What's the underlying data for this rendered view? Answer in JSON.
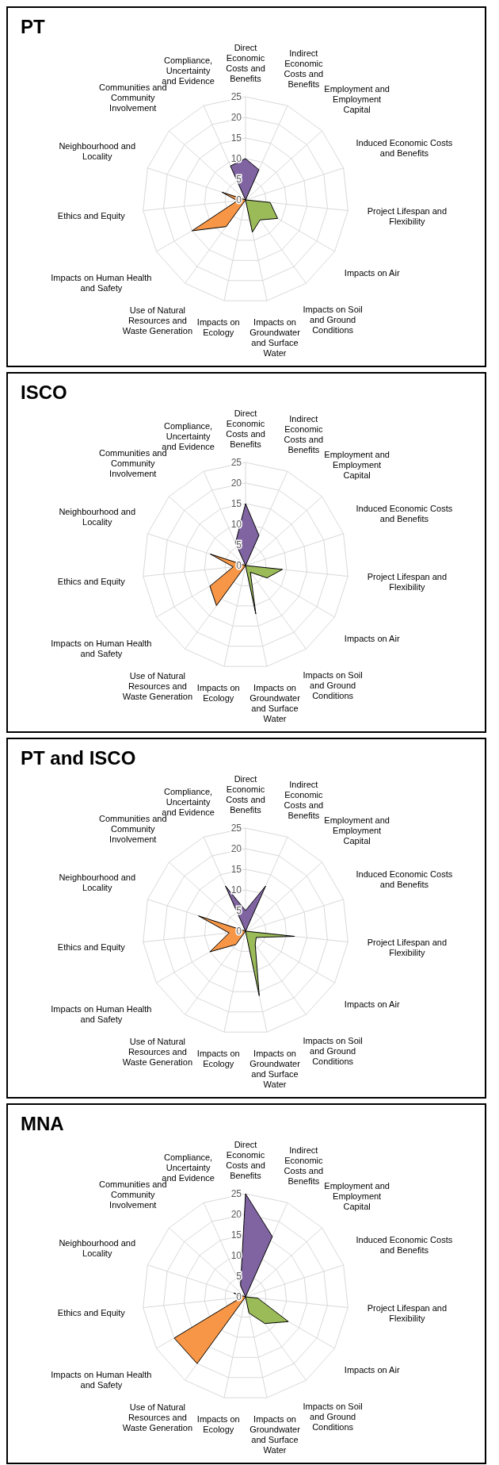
{
  "chart_data": [
    {
      "type": "radar",
      "title": "PT",
      "categories": [
        "Direct Economic Costs and Benefits",
        "Indirect Economic Costs and Benefits",
        "Employment and Employment Capital",
        "Induced Economic Costs and Benefits",
        "Project Lifespan and Flexibility",
        "Impacts on Air",
        "Impacts on Soil and Ground Conditions",
        "Impacts on Groundwater and Surface Water",
        "Impacts on Ecology",
        "Use of Natural Resources and Waste Generation",
        "Impacts on Human Health and Safety",
        "Ethics and Equity",
        "Neighbourhood and Locality",
        "Communities and Community Involvement",
        "Compliance, Uncertainty and Evidence"
      ],
      "ylim": [
        0,
        25
      ],
      "yticks": [
        0,
        5,
        10,
        15,
        20,
        25
      ],
      "grid": true,
      "series": [
        {
          "color": "#8064a2",
          "values": [
            10,
            8,
            0,
            0,
            0,
            0,
            0,
            0,
            0,
            0,
            0,
            0,
            0,
            0,
            9
          ]
        },
        {
          "color": "#9bbb59",
          "values": [
            0,
            0,
            0,
            0,
            6,
            9,
            6,
            8,
            0,
            0,
            0,
            0,
            0,
            0,
            0
          ]
        },
        {
          "color": "#f79646",
          "values": [
            0,
            0,
            0,
            0,
            0,
            0,
            0,
            0,
            0,
            8,
            15,
            2,
            6,
            0,
            0
          ]
        }
      ]
    },
    {
      "type": "radar",
      "title": "ISCO",
      "categories": [
        "Direct Economic Costs and Benefits",
        "Indirect Economic Costs and Benefits",
        "Employment and Employment Capital",
        "Induced Economic Costs and Benefits",
        "Project Lifespan and Flexibility",
        "Impacts on Air",
        "Impacts on Soil and Ground Conditions",
        "Impacts on Groundwater and Surface Water",
        "Impacts on Ecology",
        "Use of Natural Resources and Waste Generation",
        "Impacts on Human Health and Safety",
        "Ethics and Equity",
        "Neighbourhood and Locality",
        "Communities and Community Involvement",
        "Compliance, Uncertainty and Evidence"
      ],
      "ylim": [
        0,
        25
      ],
      "yticks": [
        0,
        5,
        10,
        15,
        20,
        25
      ],
      "grid": true,
      "series": [
        {
          "color": "#8064a2",
          "values": [
            15,
            8,
            0,
            0,
            0,
            0,
            0,
            0,
            0,
            0,
            0,
            0,
            0,
            0,
            6
          ]
        },
        {
          "color": "#9bbb59",
          "values": [
            0,
            0,
            0,
            0,
            9,
            6,
            2,
            12,
            0,
            0,
            0,
            0,
            0,
            0,
            0
          ]
        },
        {
          "color": "#f79646",
          "values": [
            0,
            0,
            0,
            0,
            0,
            0,
            0,
            0,
            0,
            12,
            10,
            3,
            9,
            0,
            0
          ]
        }
      ]
    },
    {
      "type": "radar",
      "title": "PT and ISCO",
      "categories": [
        "Direct Economic Costs and Benefits",
        "Indirect Economic Costs and Benefits",
        "Employment and Employment Capital",
        "Induced Economic Costs and Benefits",
        "Project Lifespan and Flexibility",
        "Impacts on Air",
        "Impacts on Soil and Ground Conditions",
        "Impacts on Groundwater and Surface Water",
        "Impacts on Ecology",
        "Use of Natural Resources and Waste Generation",
        "Impacts on Human Health and Safety",
        "Ethics and Equity",
        "Neighbourhood and Locality",
        "Communities and Community Involvement",
        "Compliance, Uncertainty and Evidence"
      ],
      "ylim": [
        0,
        25
      ],
      "yticks": [
        0,
        5,
        10,
        15,
        20,
        25
      ],
      "grid": true,
      "series": [
        {
          "color": "#8064a2",
          "values": [
            5,
            12,
            0,
            0,
            0,
            0,
            0,
            0,
            0,
            0,
            0,
            0,
            0,
            0,
            12
          ]
        },
        {
          "color": "#9bbb59",
          "values": [
            0,
            0,
            0,
            0,
            12,
            3,
            4,
            16,
            0,
            0,
            0,
            0,
            0,
            0,
            0
          ]
        },
        {
          "color": "#f79646",
          "values": [
            0,
            0,
            0,
            0,
            0,
            0,
            0,
            0,
            0,
            4,
            10,
            4,
            12,
            0,
            0
          ]
        }
      ]
    },
    {
      "type": "radar",
      "title": "MNA",
      "categories": [
        "Direct Economic Costs and Benefits",
        "Indirect Economic Costs and Benefits",
        "Employment and Employment Capital",
        "Induced Economic Costs and Benefits",
        "Project Lifespan and Flexibility",
        "Impacts on Air",
        "Impacts on Soil and Ground Conditions",
        "Impacts on Groundwater and Surface Water",
        "Impacts on Ecology",
        "Use of Natural Resources and Waste Generation",
        "Impacts on Human Health and Safety",
        "Ethics and Equity",
        "Neighbourhood and Locality",
        "Communities and Community Involvement",
        "Compliance, Uncertainty and Evidence"
      ],
      "ylim": [
        0,
        25
      ],
      "yticks": [
        0,
        5,
        10,
        15,
        20,
        25
      ],
      "grid": true,
      "series": [
        {
          "color": "#8064a2",
          "values": [
            25,
            16,
            0,
            0,
            0,
            0,
            0,
            0,
            0,
            0,
            0,
            0,
            0,
            0,
            3
          ]
        },
        {
          "color": "#9bbb59",
          "values": [
            0,
            0,
            0,
            0,
            3,
            12,
            8,
            4,
            0,
            0,
            0,
            0,
            0,
            0,
            0
          ]
        },
        {
          "color": "#f79646",
          "values": [
            0,
            0,
            0,
            0,
            0,
            0,
            0,
            0,
            0,
            20,
            20,
            1,
            3,
            0,
            0
          ]
        }
      ]
    }
  ]
}
